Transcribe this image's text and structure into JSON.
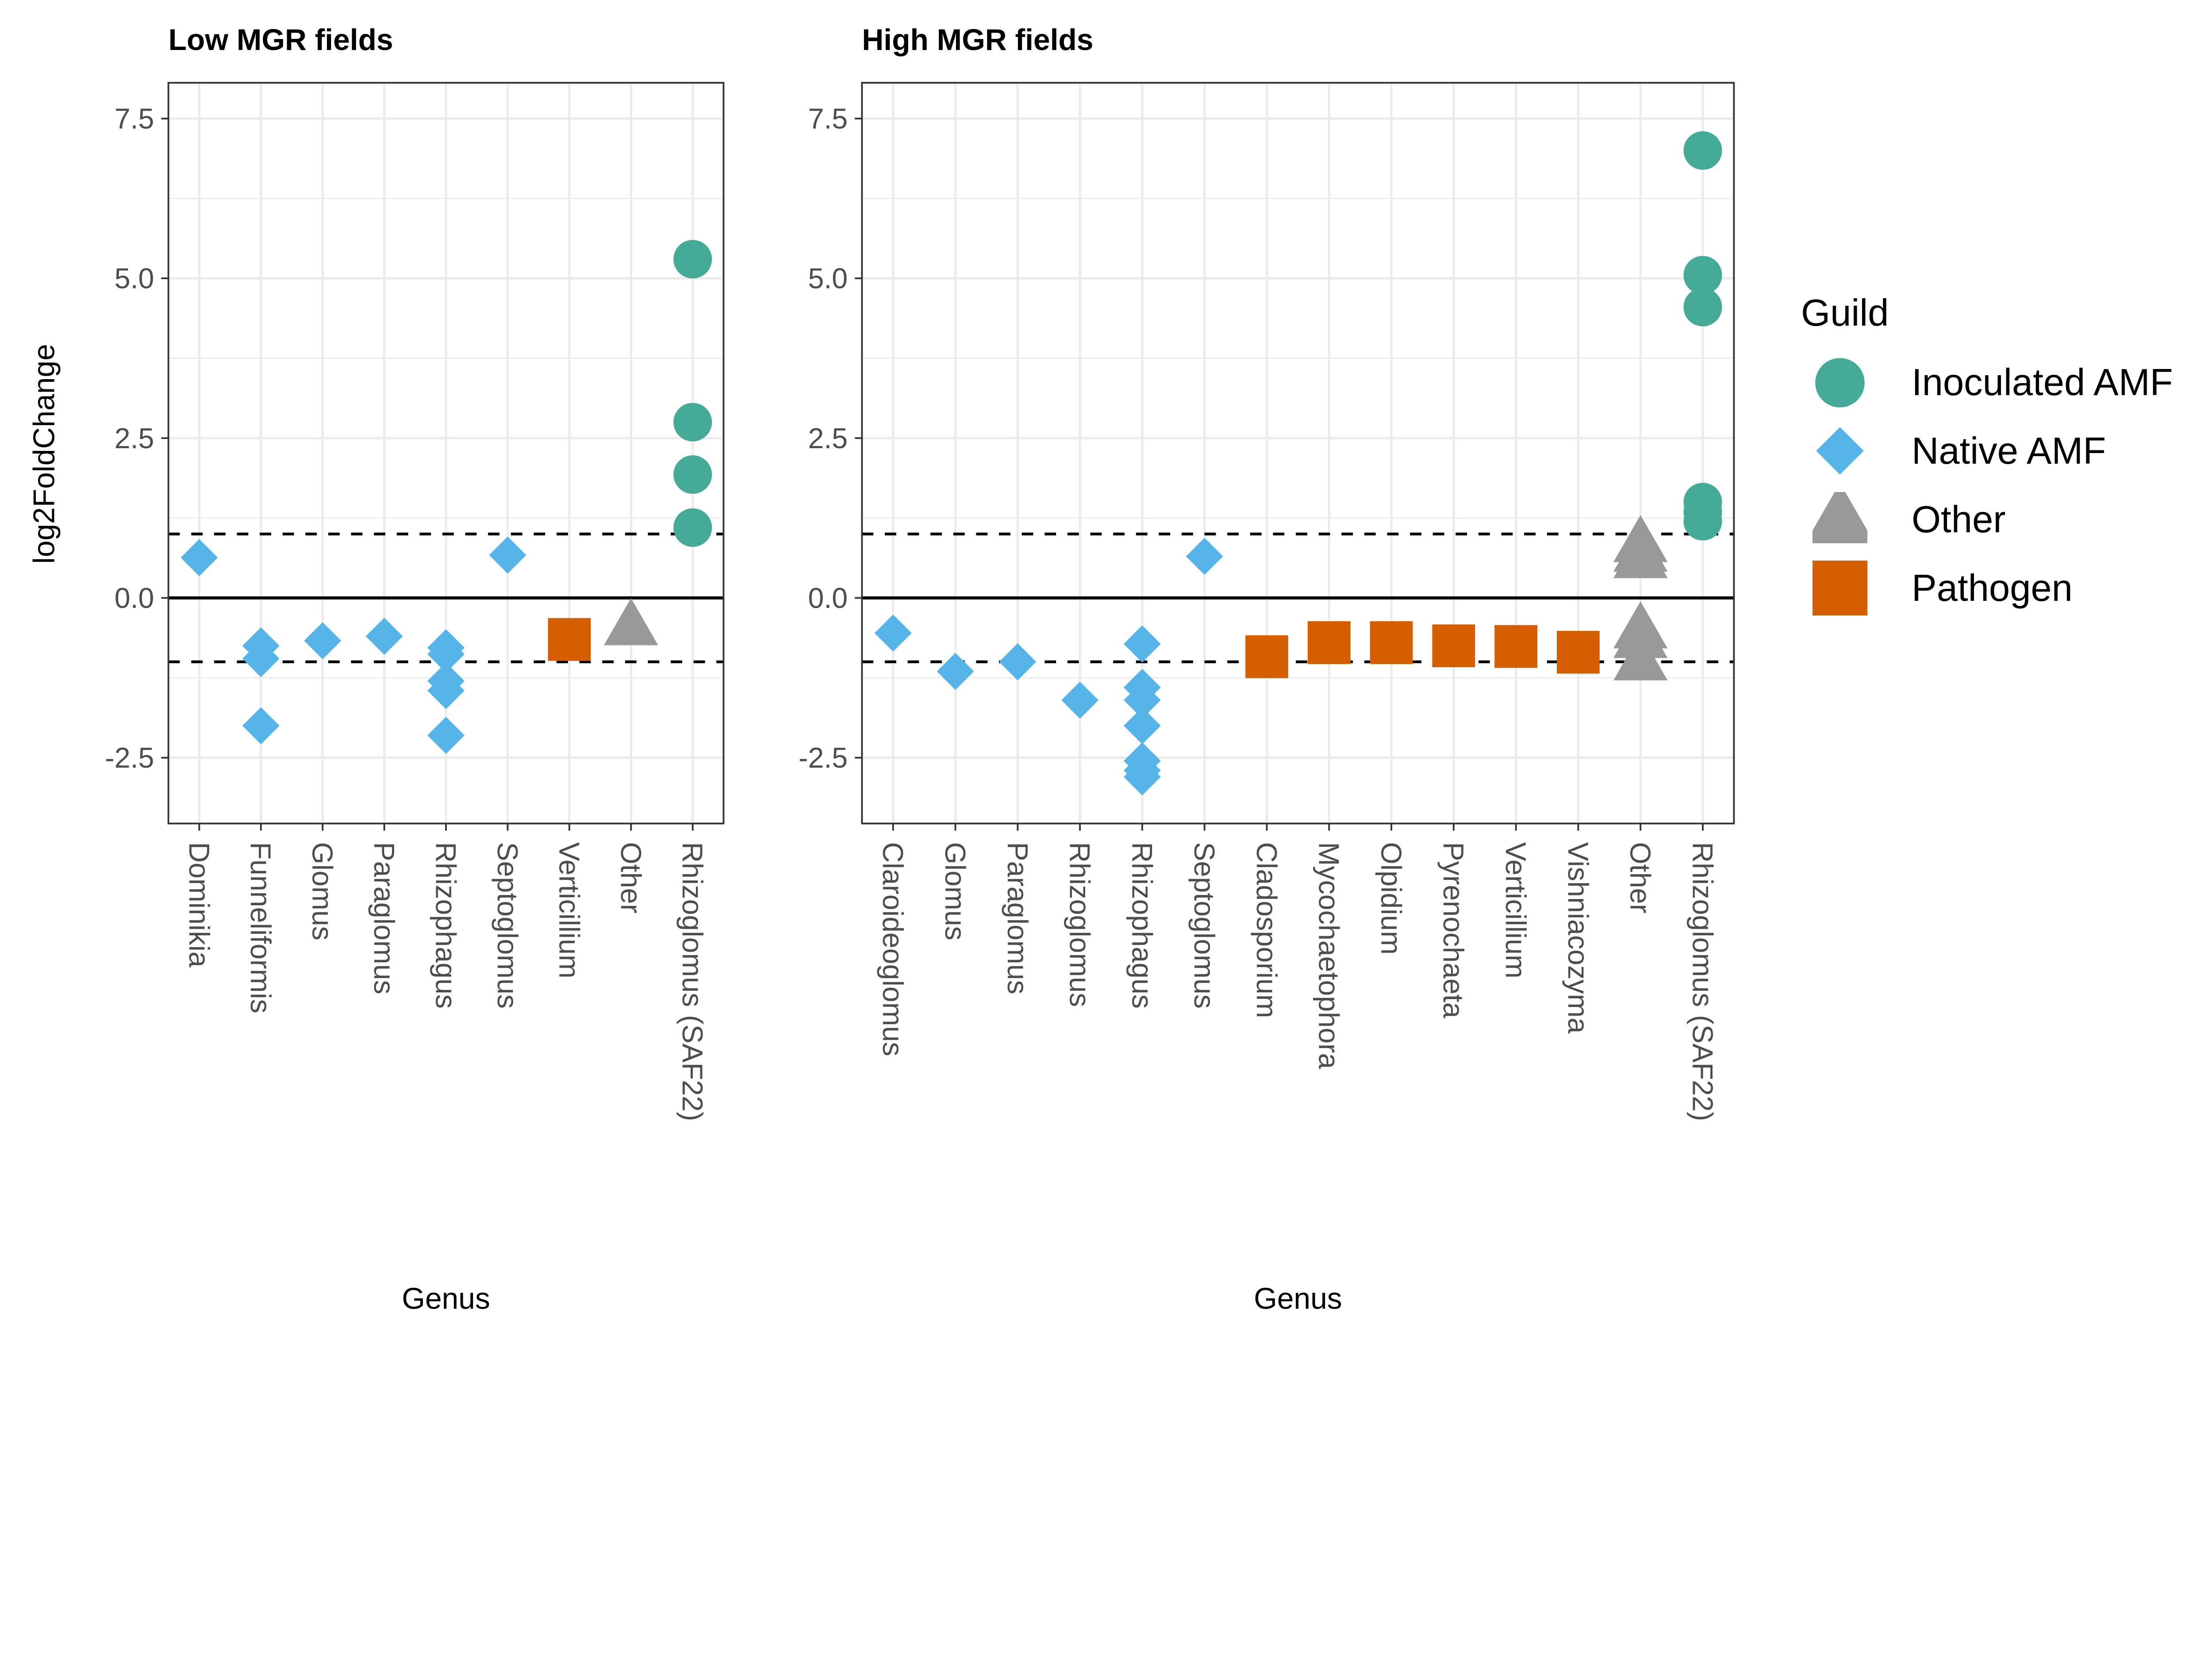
{
  "chart_data": [
    {
      "type": "scatter",
      "title": "Low MGR fields",
      "xlabel": "Genus",
      "ylabel": "log2FoldChange",
      "ylim": [
        -3.53,
        8.06
      ],
      "yticks": [
        -2.5,
        0.0,
        2.5,
        5.0,
        7.5
      ],
      "ytick_labels": [
        "-2.5",
        "0.0",
        "2.5",
        "5.0",
        "7.5"
      ],
      "hlines": [
        {
          "y": 0,
          "style": "solid"
        },
        {
          "y": 1,
          "style": "dashed"
        },
        {
          "y": -1,
          "style": "dashed"
        }
      ],
      "grid": true,
      "categories": [
        "Dominikia",
        "Funneliformis",
        "Glomus",
        "Paraglomus",
        "Rhizophagus",
        "Septoglomus",
        "Verticillium",
        "Other",
        "Rhizoglomus (SAF22)"
      ],
      "points": [
        {
          "x": "Dominikia",
          "y": 0.63,
          "guild": "Native AMF"
        },
        {
          "x": "Funneliformis",
          "y": -0.75,
          "guild": "Native AMF"
        },
        {
          "x": "Funneliformis",
          "y": -0.95,
          "guild": "Native AMF"
        },
        {
          "x": "Funneliformis",
          "y": -2.0,
          "guild": "Native AMF"
        },
        {
          "x": "Glomus",
          "y": -0.67,
          "guild": "Native AMF"
        },
        {
          "x": "Paraglomus",
          "y": -0.6,
          "guild": "Native AMF"
        },
        {
          "x": "Rhizophagus",
          "y": -0.78,
          "guild": "Native AMF"
        },
        {
          "x": "Rhizophagus",
          "y": -0.88,
          "guild": "Native AMF"
        },
        {
          "x": "Rhizophagus",
          "y": -1.3,
          "guild": "Native AMF"
        },
        {
          "x": "Rhizophagus",
          "y": -1.45,
          "guild": "Native AMF"
        },
        {
          "x": "Rhizophagus",
          "y": -2.15,
          "guild": "Native AMF"
        },
        {
          "x": "Septoglomus",
          "y": 0.67,
          "guild": "Native AMF"
        },
        {
          "x": "Verticillium",
          "y": -0.65,
          "guild": "Pathogen"
        },
        {
          "x": "Other",
          "y": -0.45,
          "guild": "Other"
        },
        {
          "x": "Rhizoglomus (SAF22)",
          "y": 5.3,
          "guild": "Inoculated AMF"
        },
        {
          "x": "Rhizoglomus (SAF22)",
          "y": 2.75,
          "guild": "Inoculated AMF"
        },
        {
          "x": "Rhizoglomus (SAF22)",
          "y": 1.93,
          "guild": "Inoculated AMF"
        },
        {
          "x": "Rhizoglomus (SAF22)",
          "y": 1.1,
          "guild": "Inoculated AMF"
        }
      ]
    },
    {
      "type": "scatter",
      "title": "High MGR fields",
      "xlabel": "Genus",
      "ylabel": "",
      "ylim": [
        -3.53,
        8.06
      ],
      "yticks": [
        -2.5,
        0.0,
        2.5,
        5.0,
        7.5
      ],
      "ytick_labels": [
        "-2.5",
        "0.0",
        "2.5",
        "5.0",
        "7.5"
      ],
      "hlines": [
        {
          "y": 0,
          "style": "solid"
        },
        {
          "y": 1,
          "style": "dashed"
        },
        {
          "y": -1,
          "style": "dashed"
        }
      ],
      "grid": true,
      "categories": [
        "Claroideoglomus",
        "Glomus",
        "Paraglomus",
        "Rhizoglomus",
        "Rhizophagus",
        "Septoglomus",
        "Cladosporium",
        "Mycochaetophora",
        "Olpidium",
        "Pyrenochaeta",
        "Verticillium",
        "Vishniacozyma",
        "Other",
        "Rhizoglomus (SAF22)"
      ],
      "points": [
        {
          "x": "Claroideoglomus",
          "y": -0.55,
          "guild": "Native AMF"
        },
        {
          "x": "Glomus",
          "y": -1.15,
          "guild": "Native AMF"
        },
        {
          "x": "Paraglomus",
          "y": -1.0,
          "guild": "Native AMF"
        },
        {
          "x": "Rhizoglomus",
          "y": -1.6,
          "guild": "Native AMF"
        },
        {
          "x": "Rhizophagus",
          "y": -0.72,
          "guild": "Native AMF"
        },
        {
          "x": "Rhizophagus",
          "y": -1.4,
          "guild": "Native AMF"
        },
        {
          "x": "Rhizophagus",
          "y": -1.6,
          "guild": "Native AMF"
        },
        {
          "x": "Rhizophagus",
          "y": -2.0,
          "guild": "Native AMF"
        },
        {
          "x": "Rhizophagus",
          "y": -2.55,
          "guild": "Native AMF"
        },
        {
          "x": "Rhizophagus",
          "y": -2.7,
          "guild": "Native AMF"
        },
        {
          "x": "Rhizophagus",
          "y": -2.8,
          "guild": "Native AMF"
        },
        {
          "x": "Septoglomus",
          "y": 0.65,
          "guild": "Native AMF"
        },
        {
          "x": "Cladosporium",
          "y": -0.92,
          "guild": "Pathogen"
        },
        {
          "x": "Mycochaetophora",
          "y": -0.7,
          "guild": "Pathogen"
        },
        {
          "x": "Olpidium",
          "y": -0.7,
          "guild": "Pathogen"
        },
        {
          "x": "Pyrenochaeta",
          "y": -0.75,
          "guild": "Pathogen"
        },
        {
          "x": "Verticillium",
          "y": -0.76,
          "guild": "Pathogen"
        },
        {
          "x": "Vishniacozyma",
          "y": -0.85,
          "guild": "Pathogen"
        },
        {
          "x": "Other",
          "y": 0.85,
          "guild": "Other"
        },
        {
          "x": "Other",
          "y": 0.7,
          "guild": "Other"
        },
        {
          "x": "Other",
          "y": 0.6,
          "guild": "Other"
        },
        {
          "x": "Other",
          "y": -0.5,
          "guild": "Other"
        },
        {
          "x": "Other",
          "y": -0.65,
          "guild": "Other"
        },
        {
          "x": "Other",
          "y": -1.0,
          "guild": "Other"
        },
        {
          "x": "Rhizoglomus (SAF22)",
          "y": 7.0,
          "guild": "Inoculated AMF"
        },
        {
          "x": "Rhizoglomus (SAF22)",
          "y": 5.05,
          "guild": "Inoculated AMF"
        },
        {
          "x": "Rhizoglomus (SAF22)",
          "y": 4.55,
          "guild": "Inoculated AMF"
        },
        {
          "x": "Rhizoglomus (SAF22)",
          "y": 1.5,
          "guild": "Inoculated AMF"
        },
        {
          "x": "Rhizoglomus (SAF22)",
          "y": 1.35,
          "guild": "Inoculated AMF"
        },
        {
          "x": "Rhizoglomus (SAF22)",
          "y": 1.2,
          "guild": "Inoculated AMF"
        }
      ]
    }
  ],
  "legend": {
    "title": "Guild",
    "placement": "right",
    "items": [
      {
        "label": "Inoculated AMF",
        "shape": "circle",
        "color": "#45AA98"
      },
      {
        "label": "Native AMF",
        "shape": "diamond",
        "color": "#56B4E9"
      },
      {
        "label": "Other",
        "shape": "triangle",
        "color": "#999999"
      },
      {
        "label": "Pathogen",
        "shape": "square",
        "color": "#D55E00"
      }
    ]
  }
}
